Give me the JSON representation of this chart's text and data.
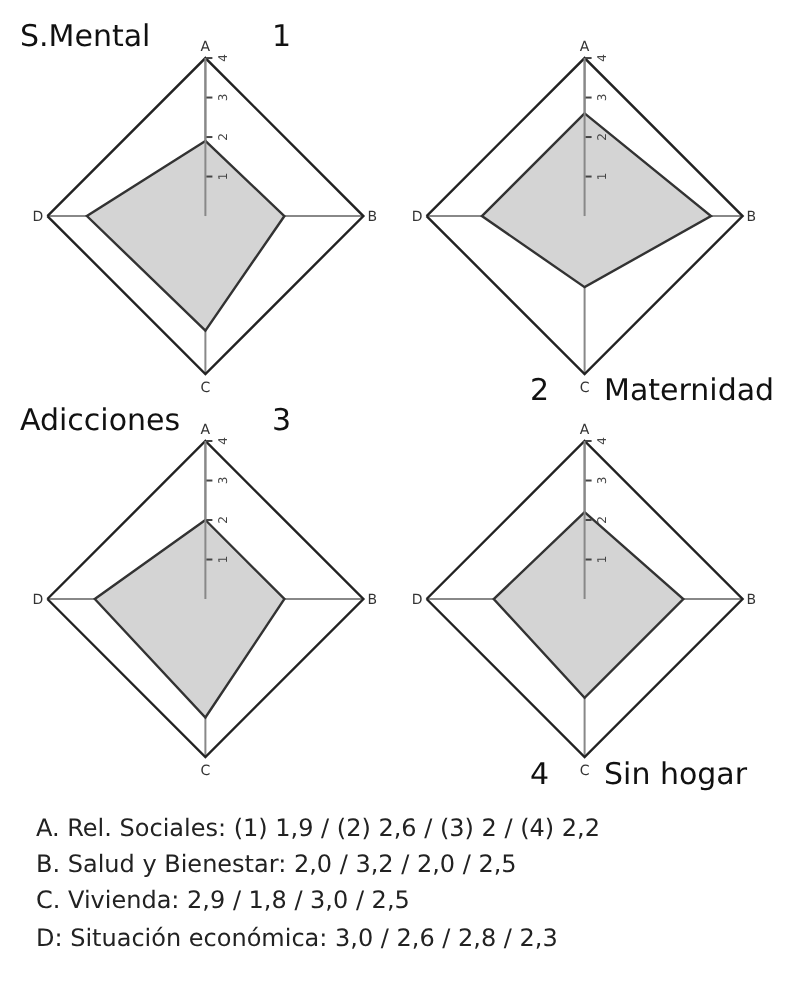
{
  "chart_data": [
    {
      "type": "radar",
      "title": "S.Mental",
      "subtitle": "1",
      "categories": [
        "A",
        "B",
        "C",
        "D"
      ],
      "series": [
        {
          "color": "#d4d4d4",
          "values": [
            1.9,
            2.0,
            2.9,
            3.0
          ]
        }
      ],
      "ylim": [
        0,
        4
      ],
      "yticks": [
        1,
        2,
        3,
        4
      ]
    },
    {
      "type": "radar",
      "title": "Maternidad",
      "subtitle": "2",
      "categories": [
        "A",
        "B",
        "C",
        "D"
      ],
      "series": [
        {
          "color": "#d4d4d4",
          "values": [
            2.6,
            3.2,
            1.8,
            2.6
          ]
        }
      ],
      "ylim": [
        0,
        4
      ],
      "yticks": [
        1,
        2,
        3,
        4
      ]
    },
    {
      "type": "radar",
      "title": "Adicciones",
      "subtitle": "3",
      "categories": [
        "A",
        "B",
        "C",
        "D"
      ],
      "series": [
        {
          "color": "#d4d4d4",
          "values": [
            2.0,
            2.0,
            3.0,
            2.8
          ]
        }
      ],
      "ylim": [
        0,
        4
      ],
      "yticks": [
        1,
        2,
        3,
        4
      ]
    },
    {
      "type": "radar",
      "title": "Sin hogar",
      "subtitle": "4",
      "categories": [
        "A",
        "B",
        "C",
        "D"
      ],
      "series": [
        {
          "color": "#d4d4d4",
          "values": [
            2.2,
            2.5,
            2.5,
            2.3
          ]
        }
      ],
      "ylim": [
        0,
        4
      ],
      "yticks": [
        1,
        2,
        3,
        4
      ]
    },
    {
      "type": "other",
      "annotations": [
        "A. Rel. Sociales: (1) 1,9 / (2) 2,6 / (3) 2 / (4) 2,2",
        "B. Salud y Bienestar: 2,0 / 3,2 / 2,0 / 2,5",
        "C. Vivienda: 2,9 / 1,8 / 3,0 / 2,5",
        "D: Situación económica: 3,0 / 2,6 / 2,8 / 2,3"
      ]
    }
  ]
}
